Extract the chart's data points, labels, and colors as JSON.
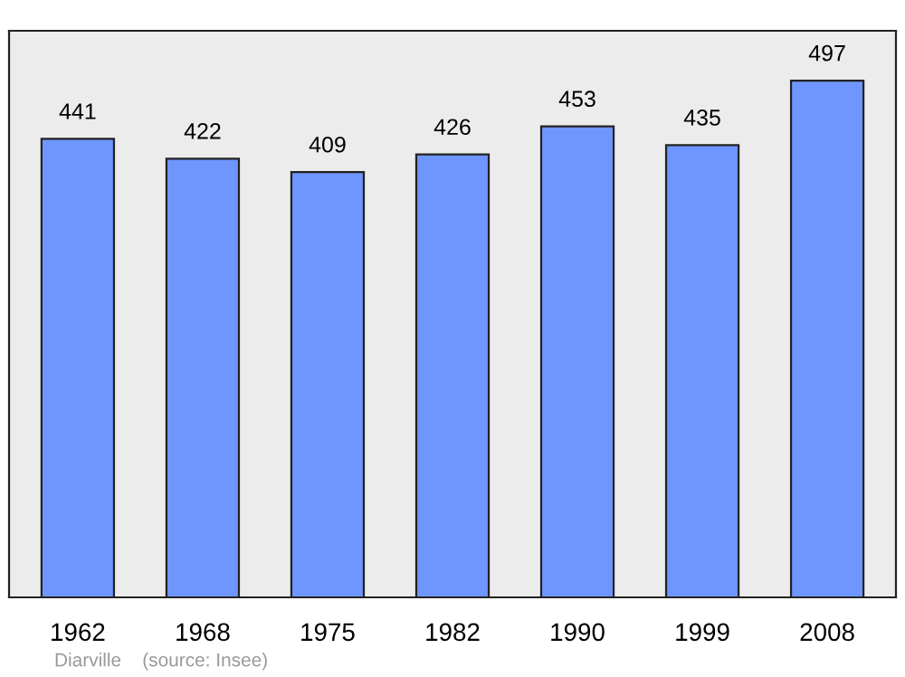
{
  "chart_data": {
    "type": "bar",
    "categories": [
      "1962",
      "1968",
      "1975",
      "1982",
      "1990",
      "1999",
      "2008"
    ],
    "values": [
      441,
      422,
      409,
      426,
      453,
      435,
      497
    ],
    "color": "#6f96ff",
    "data_labels": true,
    "ylim": [
      0,
      545
    ],
    "tick_labels": "x",
    "grid": false,
    "legend": false,
    "annotations": [
      "Diarville    (source: Insee)"
    ]
  }
}
